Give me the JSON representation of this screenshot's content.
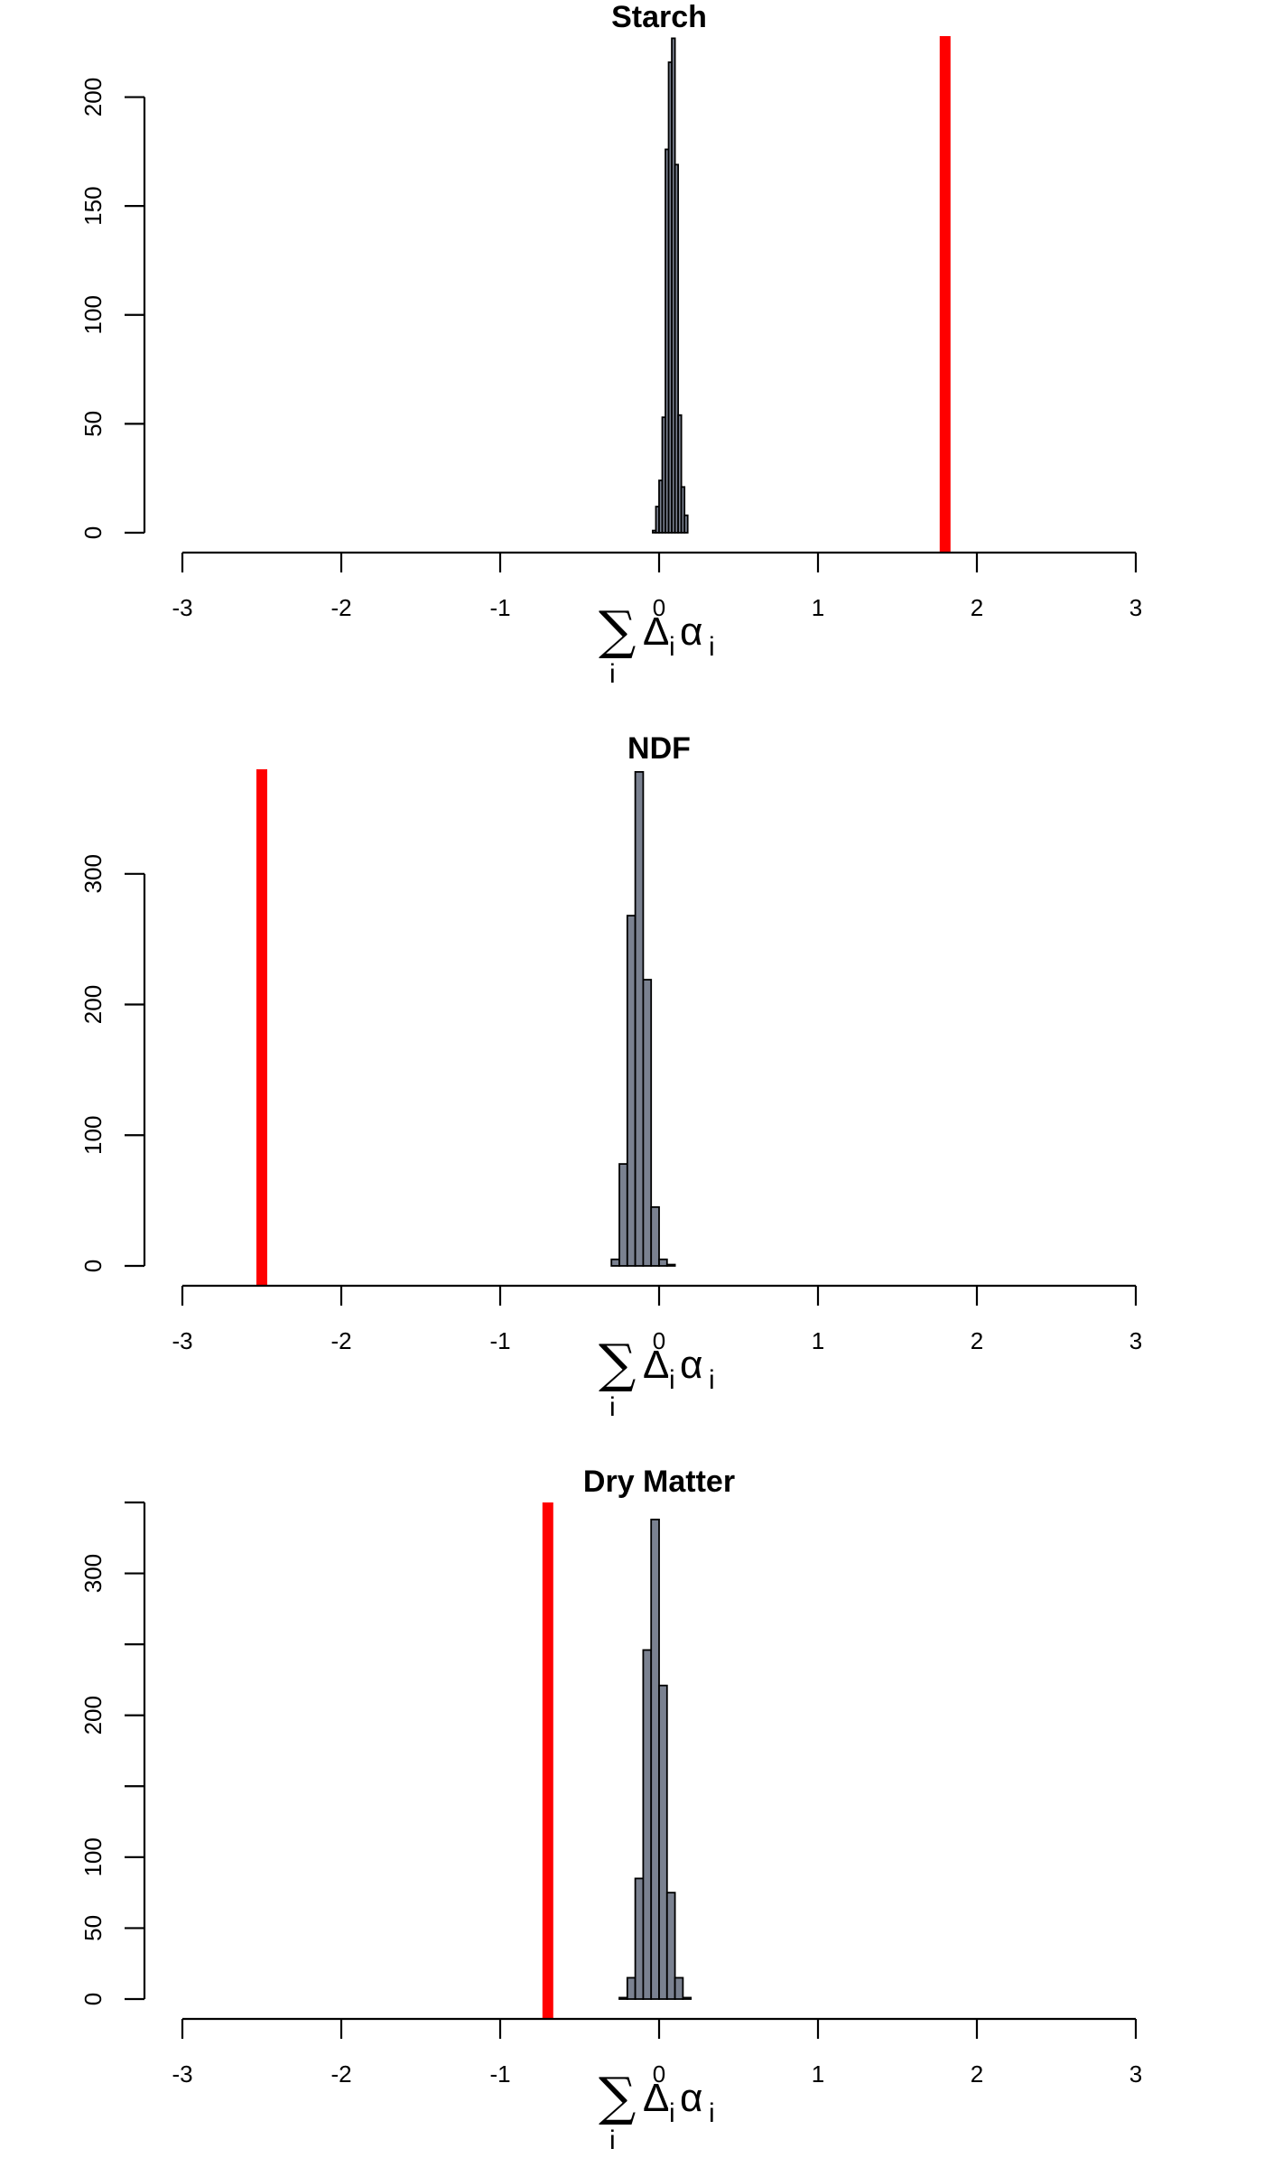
{
  "chart_data": [
    {
      "type": "histogram",
      "title": "Starch",
      "xlabel": {
        "sum": "∑",
        "sum_index": "i",
        "delta": "Δ",
        "alpha": "α",
        "sub": "i"
      },
      "xlim": [
        -3,
        3
      ],
      "xticks": [
        -3,
        -2,
        -1,
        0,
        1,
        2,
        3
      ],
      "ylim": [
        0,
        228
      ],
      "yticks": [
        0,
        50,
        100,
        150,
        200
      ],
      "yaxis_top": 200,
      "bin_width": 0.02,
      "bin_start": -0.04,
      "counts": [
        1,
        12,
        24,
        53,
        176,
        216,
        227,
        169,
        54,
        21,
        8
      ],
      "observed_line": 1.8,
      "colors": {
        "bars": "#7a8190",
        "line": "#ff0000"
      }
    },
    {
      "type": "histogram",
      "title": "NDF",
      "xlabel": {
        "sum": "∑",
        "sum_index": "i",
        "delta": "Δ",
        "alpha": "α",
        "sub": "i"
      },
      "xlim": [
        -3,
        3
      ],
      "xticks": [
        -3,
        -2,
        -1,
        0,
        1,
        2,
        3
      ],
      "ylim": [
        0,
        380
      ],
      "yticks": [
        0,
        100,
        200,
        300
      ],
      "yaxis_top": 300,
      "bin_width": 0.05,
      "bin_start": -0.3,
      "counts": [
        5,
        78,
        268,
        378,
        219,
        45,
        5,
        1
      ],
      "observed_line": -2.5,
      "colors": {
        "bars": "#7a8190",
        "line": "#ff0000"
      }
    },
    {
      "type": "histogram",
      "title": "Dry Matter",
      "xlabel": {
        "sum": "∑",
        "sum_index": "i",
        "delta": "Δ",
        "alpha": "α",
        "sub": "i"
      },
      "xlim": [
        -3,
        3
      ],
      "xticks": [
        -3,
        -2,
        -1,
        0,
        1,
        2,
        3
      ],
      "ylim": [
        0,
        350
      ],
      "yticks": [
        0,
        50,
        100,
        150,
        200,
        250,
        300,
        350
      ],
      "ytick_labels": [
        "0",
        "50",
        "100",
        "",
        "200",
        "",
        "300",
        ""
      ],
      "yaxis_top": 350,
      "bin_width": 0.05,
      "bin_start": -0.25,
      "counts": [
        1,
        15,
        85,
        246,
        338,
        221,
        75,
        15,
        1
      ],
      "observed_line": -0.7,
      "colors": {
        "bars": "#7a8190",
        "line": "#ff0000"
      }
    }
  ]
}
